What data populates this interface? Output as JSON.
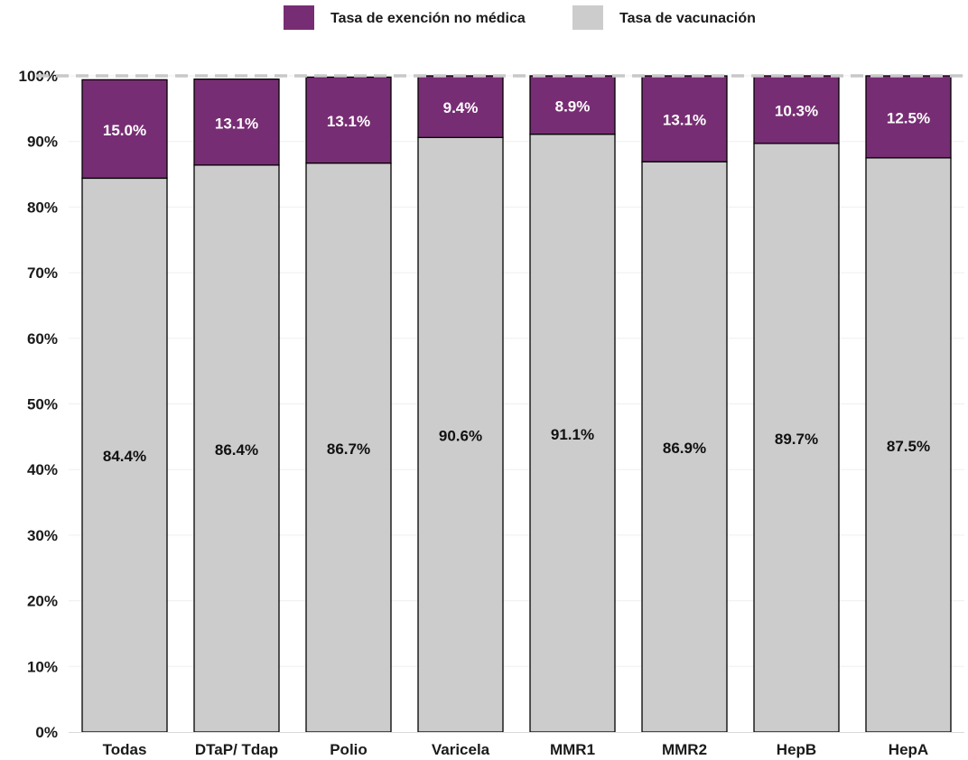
{
  "chart_data": {
    "type": "bar",
    "stacked": true,
    "categories": [
      "Todas",
      "DTaP/ Tdap",
      "Polio",
      "Varicela",
      "MMR1",
      "MMR2",
      "HepB",
      "HepA"
    ],
    "series": [
      {
        "name": "Tasa de vacunación",
        "color": "#cccccc",
        "values": [
          84.4,
          86.4,
          86.7,
          90.6,
          91.1,
          86.9,
          89.7,
          87.5
        ],
        "labels": [
          "84.4%",
          "86.4%",
          "86.7%",
          "90.6%",
          "91.1%",
          "86.9%",
          "89.7%",
          "87.5%"
        ]
      },
      {
        "name": "Tasa de exención no médica",
        "color": "#772d73",
        "values": [
          15.0,
          13.1,
          13.1,
          9.4,
          8.9,
          13.1,
          10.3,
          12.5
        ],
        "labels": [
          "15.0%",
          "13.1%",
          "13.1%",
          "9.4%",
          "8.9%",
          "13.1%",
          "10.3%",
          "12.5%"
        ]
      }
    ],
    "ylim": [
      0,
      100
    ],
    "yticks": [
      "0%",
      "10%",
      "20%",
      "30%",
      "40%",
      "50%",
      "60%",
      "70%",
      "80%",
      "90%",
      "100%"
    ],
    "reference_line": 100,
    "legend": {
      "position": "top-center",
      "items": [
        {
          "label": "Tasa de exención no médica",
          "color": "#772d73"
        },
        {
          "label": "Tasa de vacunación",
          "color": "#cccccc"
        }
      ]
    },
    "grid": true,
    "title": "",
    "xlabel": "",
    "ylabel": ""
  }
}
